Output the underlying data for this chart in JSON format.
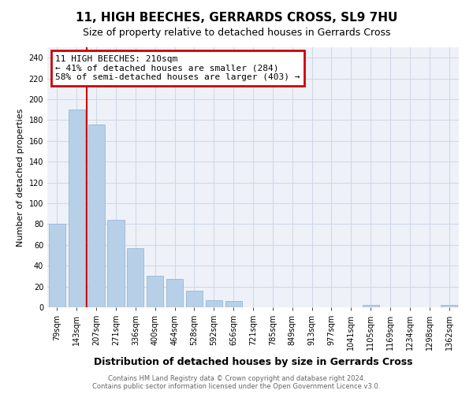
{
  "title": "11, HIGH BEECHES, GERRARDS CROSS, SL9 7HU",
  "subtitle": "Size of property relative to detached houses in Gerrards Cross",
  "xlabel": "Distribution of detached houses by size in Gerrards Cross",
  "ylabel": "Number of detached properties",
  "categories": [
    "79sqm",
    "143sqm",
    "207sqm",
    "271sqm",
    "336sqm",
    "400sqm",
    "464sqm",
    "528sqm",
    "592sqm",
    "656sqm",
    "721sqm",
    "785sqm",
    "849sqm",
    "913sqm",
    "977sqm",
    "1041sqm",
    "1105sqm",
    "1169sqm",
    "1234sqm",
    "1298sqm",
    "1362sqm"
  ],
  "values": [
    80,
    190,
    176,
    84,
    57,
    30,
    27,
    16,
    7,
    6,
    0,
    0,
    0,
    0,
    0,
    0,
    2,
    0,
    0,
    0,
    2
  ],
  "bar_color": "#b8cfe8",
  "bar_edge_color": "#8aaed4",
  "annotation_text": "11 HIGH BEECHES: 210sqm\n← 41% of detached houses are smaller (284)\n58% of semi-detached houses are larger (403) →",
  "annotation_box_color": "#cc0000",
  "vline_x": 1.5,
  "ylim": [
    0,
    250
  ],
  "yticks": [
    0,
    20,
    40,
    60,
    80,
    100,
    120,
    140,
    160,
    180,
    200,
    220,
    240
  ],
  "footnote1": "Contains HM Land Registry data © Crown copyright and database right 2024.",
  "footnote2": "Contains public sector information licensed under the Open Government Licence v3.0.",
  "bg_color": "#eef2f8",
  "grid_color": "#d0d8e8",
  "title_fontsize": 11,
  "subtitle_fontsize": 9,
  "xlabel_fontsize": 9,
  "ylabel_fontsize": 8,
  "tick_fontsize": 7,
  "annotation_fontsize": 8,
  "footnote_fontsize": 6
}
